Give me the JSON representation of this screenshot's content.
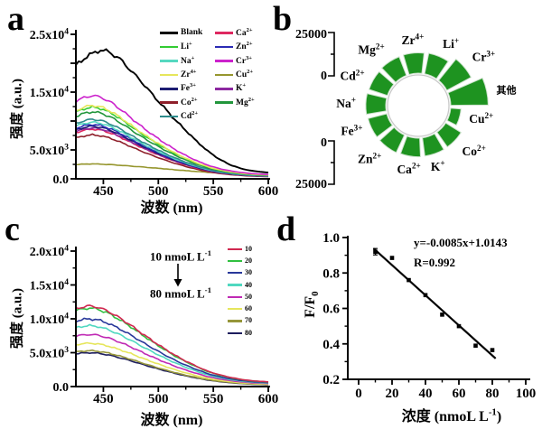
{
  "panels": {
    "a": {
      "label": "a"
    },
    "b": {
      "label": "b"
    },
    "c": {
      "label": "c"
    },
    "d": {
      "label": "d"
    }
  },
  "chart_data": [
    {
      "panel": "a",
      "type": "line",
      "title": "",
      "xlabel": "波数 (nm)",
      "ylabel": "强度 (a.u.)",
      "xlim": [
        425,
        600
      ],
      "ylim": [
        0,
        25000
      ],
      "x_ticks": [
        450,
        500,
        550,
        600
      ],
      "x_minor": [
        475,
        525,
        575
      ],
      "y_ticks": [
        {
          "v": 0,
          "label": "0.0"
        },
        {
          "v": 5000,
          "label": "5.0x10^3"
        },
        {
          "v": 10000,
          "label": ""
        },
        {
          "v": 15000,
          "label": "1.5x10^4"
        },
        {
          "v": 20000,
          "label": ""
        },
        {
          "v": 25000,
          "label": "2.5x10^4"
        }
      ],
      "y_minor": [
        2500,
        7500,
        12500,
        17500,
        22500
      ],
      "legend_position": "top-right",
      "legend_columns": [
        [
          "Blank",
          "Li^+",
          "Na^+",
          "Zr^4+",
          "Fe^3+",
          "Co^2+",
          "Cd^2+"
        ],
        [
          "Ca^2+",
          "Zn^2+",
          "Cr^3+",
          "Cu^2+",
          "K^+",
          "Mg^2+"
        ]
      ],
      "series": [
        {
          "name": "Blank",
          "color": "#000000",
          "peak": 22300,
          "peak_nm": 447,
          "shape": "blank"
        },
        {
          "name": "Li^+",
          "color": "#33cc33",
          "peak": 12400,
          "peak_nm": 440,
          "shape": "ion"
        },
        {
          "name": "Na^+",
          "color": "#55d8c0",
          "peak": 9800,
          "peak_nm": 440,
          "shape": "ion"
        },
        {
          "name": "Zr^4+",
          "color": "#e6e65c",
          "peak": 12700,
          "peak_nm": 440,
          "shape": "ion"
        },
        {
          "name": "Fe^3+",
          "color": "#1c1c72",
          "peak": 9100,
          "peak_nm": 440,
          "shape": "ion"
        },
        {
          "name": "Co^2+",
          "color": "#8e1f2a",
          "peak": 7600,
          "peak_nm": 440,
          "shape": "ion"
        },
        {
          "name": "Cd^2+",
          "color": "#2f8c8c",
          "peak": 10300,
          "peak_nm": 440,
          "shape": "ion"
        },
        {
          "name": "Ca^2+",
          "color": "#de2860",
          "peak": 8600,
          "peak_nm": 440,
          "shape": "ion"
        },
        {
          "name": "Zn^2+",
          "color": "#2a2ab4",
          "peak": 9400,
          "peak_nm": 440,
          "shape": "ion"
        },
        {
          "name": "Cr^3+",
          "color": "#cc22cc",
          "peak": 14400,
          "peak_nm": 440,
          "shape": "ion"
        },
        {
          "name": "Cu^2+",
          "color": "#96962e",
          "peak": 2600,
          "peak_nm": 440,
          "shape": "quenched"
        },
        {
          "name": "K^+",
          "color": "#8c28a0",
          "peak": 8800,
          "peak_nm": 440,
          "shape": "ion"
        },
        {
          "name": "Mg^2+",
          "color": "#22963c",
          "peak": 11600,
          "peak_nm": 440,
          "shape": "ion"
        }
      ],
      "shapes": {
        "blank": {
          "x": [
            425,
            435,
            447,
            455,
            465,
            475,
            485,
            495,
            505,
            515,
            525,
            535,
            545,
            555,
            565,
            575,
            585,
            600
          ],
          "f": [
            0.88,
            0.95,
            1,
            0.985,
            0.93,
            0.84,
            0.75,
            0.65,
            0.555,
            0.46,
            0.375,
            0.29,
            0.215,
            0.155,
            0.11,
            0.08,
            0.062,
            0.048
          ]
        },
        "ion": {
          "x": [
            425,
            433,
            440,
            448,
            458,
            468,
            478,
            488,
            498,
            508,
            518,
            528,
            538,
            548,
            558,
            568,
            578,
            588,
            600
          ],
          "f": [
            0.93,
            0.98,
            1,
            0.98,
            0.91,
            0.81,
            0.7,
            0.595,
            0.5,
            0.41,
            0.33,
            0.26,
            0.2,
            0.15,
            0.115,
            0.09,
            0.072,
            0.06,
            0.052
          ]
        },
        "quenched": {
          "x": [
            425,
            440,
            460,
            480,
            500,
            520,
            540,
            560,
            580,
            600
          ],
          "f": [
            0.95,
            1,
            0.93,
            0.82,
            0.7,
            0.57,
            0.46,
            0.37,
            0.3,
            0.25
          ]
        }
      }
    },
    {
      "panel": "b",
      "type": "radial-bar",
      "bar_color": "#1e9320",
      "scale_max": 25000,
      "scales": {
        "top": [
          "25000",
          "0"
        ],
        "bottom": [
          "0",
          "25000"
        ]
      },
      "wedges": [
        {
          "name": "Zr^4+",
          "value": 12200
        },
        {
          "name": "Li^+",
          "value": 12600
        },
        {
          "name": "Cr^3+",
          "value": 16500
        },
        {
          "name": "其他",
          "value": 22500
        },
        {
          "name": "Cu^2+",
          "value": 6200
        },
        {
          "name": "Co^2+",
          "value": 10800
        },
        {
          "name": "K^+",
          "value": 11000
        },
        {
          "name": "Ca^2+",
          "value": 11200
        },
        {
          "name": "Zn^2+",
          "value": 11600
        },
        {
          "name": "Fe^3+",
          "value": 11600
        },
        {
          "name": "Na^+",
          "value": 12000
        },
        {
          "name": "Cd^2+",
          "value": 11600
        },
        {
          "name": "Mg^2+",
          "value": 12000
        }
      ]
    },
    {
      "panel": "c",
      "type": "line",
      "title": "",
      "xlabel": "波数 (nm)",
      "ylabel": "强度 (a.u.)",
      "xlim": [
        425,
        600
      ],
      "ylim": [
        0,
        20000
      ],
      "x_ticks": [
        450,
        500,
        550,
        600
      ],
      "x_minor": [
        475,
        525,
        575
      ],
      "y_ticks": [
        {
          "v": 0,
          "label": "0.0"
        },
        {
          "v": 5000,
          "label": "5.0x10^3"
        },
        {
          "v": 10000,
          "label": "1.0x10^4"
        },
        {
          "v": 15000,
          "label": "1.5x10^4"
        },
        {
          "v": 20000,
          "label": "2.0x10^4"
        }
      ],
      "y_minor": [
        2500,
        7500,
        12500,
        17500
      ],
      "annotation": {
        "from": "10 nmoL L^-1",
        "to": "80 nmoL L^-1"
      },
      "legend_position": "right",
      "series": [
        {
          "name": "10",
          "color": "#d02850",
          "peak": 11900,
          "shape": "conc"
        },
        {
          "name": "20",
          "color": "#30c040",
          "peak": 11600,
          "shape": "conc"
        },
        {
          "name": "30",
          "color": "#28389a",
          "peak": 10000,
          "shape": "conc"
        },
        {
          "name": "40",
          "color": "#50d8c0",
          "peak": 9000,
          "shape": "conc"
        },
        {
          "name": "50",
          "color": "#c02ab4",
          "peak": 7700,
          "shape": "conc"
        },
        {
          "name": "60",
          "color": "#e6e65c",
          "peak": 6400,
          "shape": "conc"
        },
        {
          "name": "70",
          "color": "#96963a",
          "peak": 5300,
          "shape": "conc"
        },
        {
          "name": "80",
          "color": "#1e1e5e",
          "peak": 5000,
          "shape": "conc"
        }
      ],
      "shapes": {
        "conc": {
          "x": [
            425,
            430,
            437,
            445,
            455,
            465,
            475,
            485,
            495,
            505,
            515,
            525,
            535,
            545,
            555,
            565,
            575,
            585,
            600
          ],
          "f": [
            0.965,
            0.985,
            1,
            0.985,
            0.93,
            0.85,
            0.76,
            0.66,
            0.565,
            0.475,
            0.39,
            0.315,
            0.25,
            0.19,
            0.148,
            0.115,
            0.09,
            0.072,
            0.058
          ]
        }
      }
    },
    {
      "panel": "d",
      "type": "scatter",
      "xlabel": "浓度 (nmoL L^-1)",
      "ylabel": "F/F_0",
      "xlim": [
        0,
        100
      ],
      "ylim": [
        0.2,
        1.0
      ],
      "x_ticks": [
        0,
        20,
        40,
        60,
        80,
        100
      ],
      "x_minor": [
        10,
        30,
        50,
        70,
        90
      ],
      "y_ticks": [
        0.2,
        0.4,
        0.6,
        0.8,
        1.0
      ],
      "y_minor": [
        0.3,
        0.5,
        0.7,
        0.9
      ],
      "points": [
        [
          10,
          0.92
        ],
        [
          20,
          0.885
        ],
        [
          30,
          0.76
        ],
        [
          40,
          0.675
        ],
        [
          50,
          0.565
        ],
        [
          60,
          0.5
        ],
        [
          70,
          0.39
        ],
        [
          80,
          0.365
        ]
      ],
      "first_point_error": 0.018,
      "fit": {
        "equation": "y=-0.0085x+1.0143",
        "r_label": "R=0.992",
        "slope": -0.0085,
        "intercept": 1.0143,
        "x_range": [
          9,
          82
        ]
      }
    }
  ]
}
